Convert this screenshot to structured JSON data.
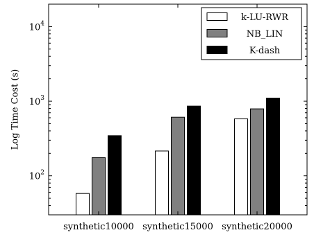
{
  "chart_data": {
    "type": "bar",
    "title": "",
    "xlabel": "",
    "ylabel": "Log Time Cost (s)",
    "yscale": "log",
    "ylim": [
      30,
      20000
    ],
    "y_ticks": [
      {
        "value": 100,
        "base": "10",
        "exp": "2"
      },
      {
        "value": 1000,
        "base": "10",
        "exp": "3"
      },
      {
        "value": 10000,
        "base": "10",
        "exp": "4"
      }
    ],
    "categories": [
      "synthetic10000",
      "synthetic15000",
      "synthetic20000"
    ],
    "series": [
      {
        "name": "k-LU-RWR",
        "values": [
          58,
          215,
          580
        ],
        "color": "#ffffff"
      },
      {
        "name": "NB_LIN",
        "values": [
          175,
          610,
          790
        ],
        "color": "#808080"
      },
      {
        "name": "K-dash",
        "values": [
          345,
          860,
          1100
        ],
        "color": "#000000"
      }
    ],
    "legend_position": "top-right",
    "grid": false
  }
}
